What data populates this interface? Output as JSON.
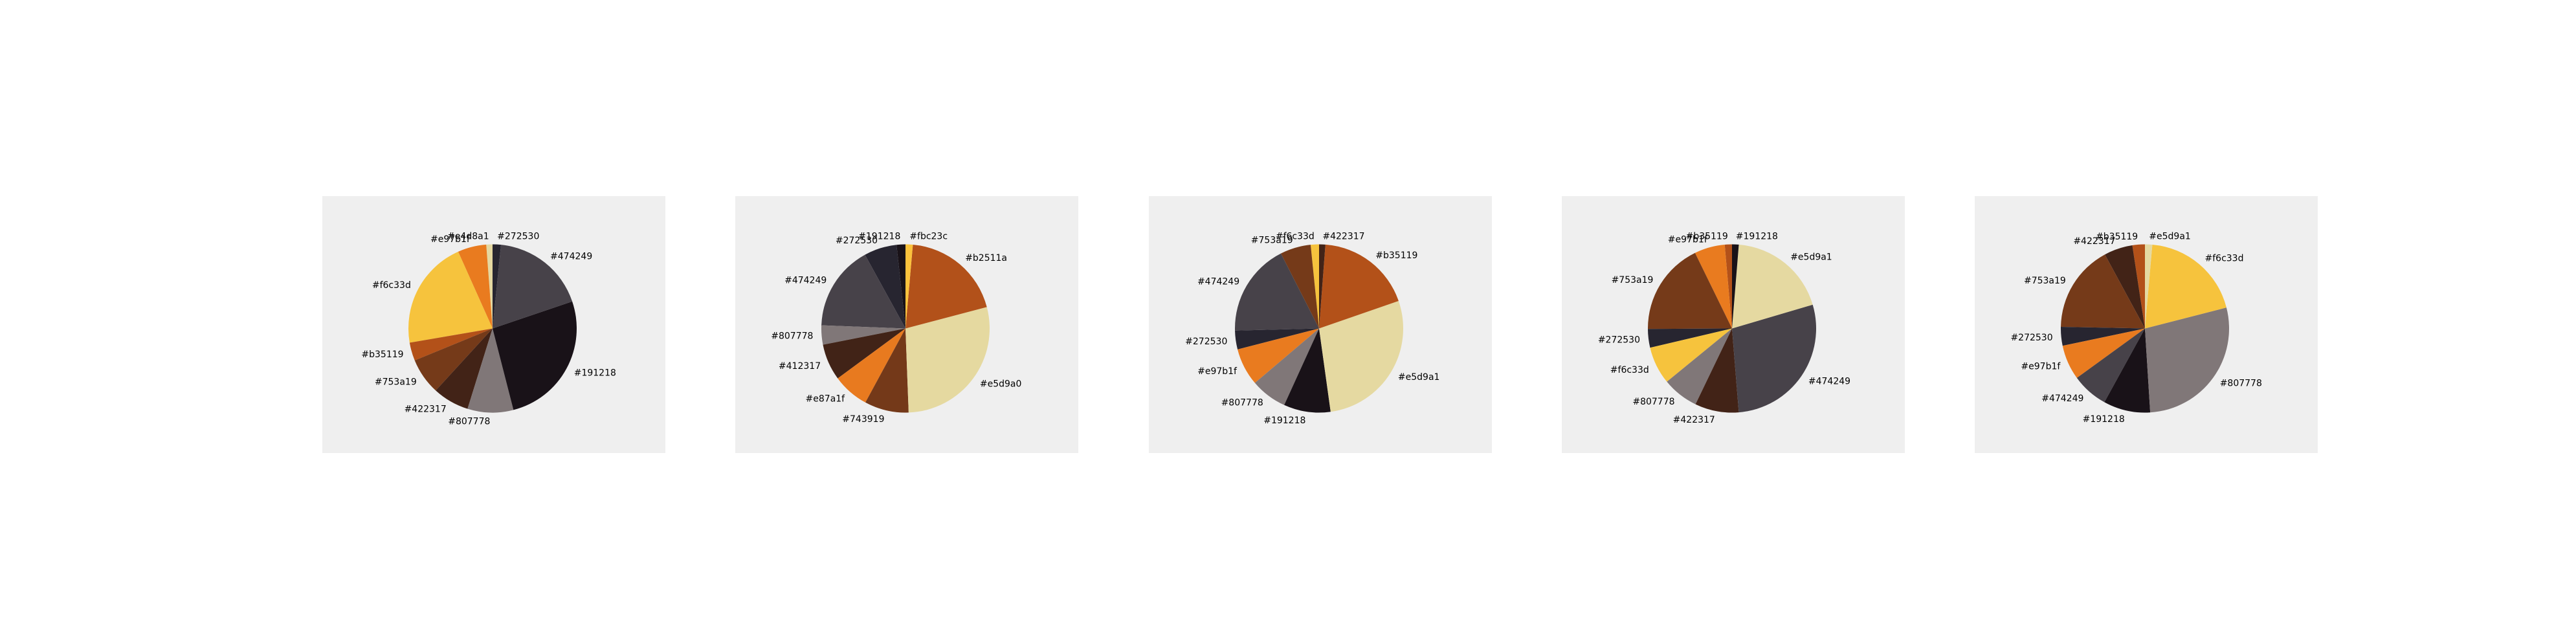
{
  "chart_data": [
    {
      "type": "pie",
      "title": "",
      "slices": [
        {
          "label": "#e4d8a1",
          "value": 1.2,
          "color": "#e4d8a1"
        },
        {
          "label": "#e97b1f",
          "value": 5.5,
          "color": "#e97b1f"
        },
        {
          "label": "#f6c33d",
          "value": 21.0,
          "color": "#f6c33d"
        },
        {
          "label": "#b35119",
          "value": 3.5,
          "color": "#b35119"
        },
        {
          "label": "#753a19",
          "value": 7.0,
          "color": "#753a19"
        },
        {
          "label": "#422317",
          "value": 7.0,
          "color": "#422317"
        },
        {
          "label": "#807778",
          "value": 8.8,
          "color": "#807778"
        },
        {
          "label": "#191218",
          "value": 26.2,
          "color": "#191218"
        },
        {
          "label": "#474249",
          "value": 18.2,
          "color": "#474249"
        },
        {
          "label": "#272530",
          "value": 1.6,
          "color": "#272530"
        }
      ]
    },
    {
      "type": "pie",
      "title": "",
      "slices": [
        {
          "label": "#191218",
          "value": 1.7,
          "color": "#191218"
        },
        {
          "label": "#272530",
          "value": 6.3,
          "color": "#272530"
        },
        {
          "label": "#474249",
          "value": 16.4,
          "color": "#474249"
        },
        {
          "label": "#807778",
          "value": 3.7,
          "color": "#807778"
        },
        {
          "label": "#412317",
          "value": 7.0,
          "color": "#412317"
        },
        {
          "label": "#e87a1f",
          "value": 7.0,
          "color": "#e87a1f"
        },
        {
          "label": "#743919",
          "value": 8.5,
          "color": "#743919"
        },
        {
          "label": "#e5d9a0",
          "value": 28.5,
          "color": "#e5d9a0"
        },
        {
          "label": "#b2511a",
          "value": 19.5,
          "color": "#b2511a"
        },
        {
          "label": "#fbc23c",
          "value": 1.4,
          "color": "#fbc23c"
        }
      ]
    },
    {
      "type": "pie",
      "title": "",
      "slices": [
        {
          "label": "#f6c33d",
          "value": 1.6,
          "color": "#f6c33d"
        },
        {
          "label": "#753a19",
          "value": 5.9,
          "color": "#753a19"
        },
        {
          "label": "#474249",
          "value": 17.9,
          "color": "#474249"
        },
        {
          "label": "#272530",
          "value": 3.6,
          "color": "#272530"
        },
        {
          "label": "#e97b1f",
          "value": 7.2,
          "color": "#e97b1f"
        },
        {
          "label": "#807778",
          "value": 7.0,
          "color": "#807778"
        },
        {
          "label": "#191218",
          "value": 9.0,
          "color": "#191218"
        },
        {
          "label": "#e5d9a1",
          "value": 28.1,
          "color": "#e5d9a1"
        },
        {
          "label": "#b35119",
          "value": 18.5,
          "color": "#b35119"
        },
        {
          "label": "#422317",
          "value": 1.2,
          "color": "#422317"
        }
      ]
    },
    {
      "type": "pie",
      "title": "",
      "slices": [
        {
          "label": "#b35119",
          "value": 1.4,
          "color": "#b35119"
        },
        {
          "label": "#e97b1f",
          "value": 5.9,
          "color": "#e97b1f"
        },
        {
          "label": "#753a19",
          "value": 18.0,
          "color": "#753a19"
        },
        {
          "label": "#272530",
          "value": 3.6,
          "color": "#272530"
        },
        {
          "label": "#f6c33d",
          "value": 7.3,
          "color": "#f6c33d"
        },
        {
          "label": "#807778",
          "value": 7.0,
          "color": "#807778"
        },
        {
          "label": "#422317",
          "value": 8.5,
          "color": "#422317"
        },
        {
          "label": "#474249",
          "value": 28.5,
          "color": "#474249"
        },
        {
          "label": "#e5d9a1",
          "value": 19.3,
          "color": "#e5d9a1"
        },
        {
          "label": "#191218",
          "value": 1.3,
          "color": "#191218"
        }
      ]
    },
    {
      "type": "pie",
      "title": "",
      "slices": [
        {
          "label": "#b35119",
          "value": 2.4,
          "color": "#b35119"
        },
        {
          "label": "#422317",
          "value": 5.5,
          "color": "#422317"
        },
        {
          "label": "#753a19",
          "value": 16.8,
          "color": "#753a19"
        },
        {
          "label": "#272530",
          "value": 3.6,
          "color": "#272530"
        },
        {
          "label": "#e97b1f",
          "value": 6.7,
          "color": "#e97b1f"
        },
        {
          "label": "#474249",
          "value": 7.0,
          "color": "#474249"
        },
        {
          "label": "#191218",
          "value": 9.0,
          "color": "#191218"
        },
        {
          "label": "#807778",
          "value": 28.0,
          "color": "#807778"
        },
        {
          "label": "#f6c33d",
          "value": 19.6,
          "color": "#f6c33d"
        },
        {
          "label": "#e5d9a1",
          "value": 1.4,
          "color": "#e5d9a1"
        }
      ]
    }
  ]
}
